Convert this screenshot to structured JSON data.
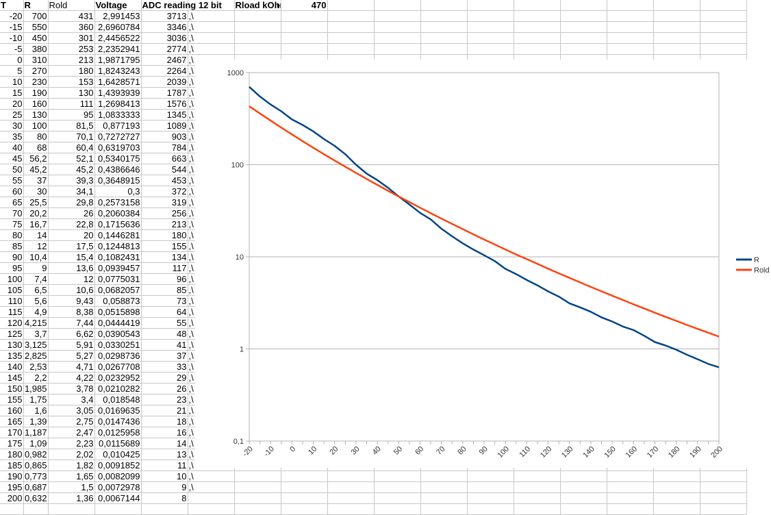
{
  "sheet": {
    "headers": [
      "T",
      "R",
      "Rold",
      "Voltage",
      "ADC reading 12 bit",
      "",
      "Rload kOhm",
      "470"
    ],
    "rows": [
      [
        "-20",
        "700",
        "431",
        "2,991453",
        "3713",
        ",\\"
      ],
      [
        "-15",
        "550",
        "360",
        "2,6960784",
        "3346",
        ",\\"
      ],
      [
        "-10",
        "450",
        "301",
        "2,4456522",
        "3036",
        ",\\"
      ],
      [
        "-5",
        "380",
        "253",
        "2,2352941",
        "2774",
        ",\\"
      ],
      [
        "0",
        "310",
        "213",
        "1,9871795",
        "2467",
        ",\\"
      ],
      [
        "5",
        "270",
        "180",
        "1,8243243",
        "2264",
        ",\\"
      ],
      [
        "10",
        "230",
        "153",
        "1,6428571",
        "2039",
        ",\\"
      ],
      [
        "15",
        "190",
        "130",
        "1,4393939",
        "1787",
        ",\\"
      ],
      [
        "20",
        "160",
        "111",
        "1,2698413",
        "1576",
        ",\\"
      ],
      [
        "25",
        "130",
        "95",
        "1,0833333",
        "1345",
        ",\\"
      ],
      [
        "30",
        "100",
        "81,5",
        "0,877193",
        "1089",
        ",\\"
      ],
      [
        "35",
        "80",
        "70,1",
        "0,7272727",
        "903",
        ",\\"
      ],
      [
        "40",
        "68",
        "60,4",
        "0,6319703",
        "784",
        ",\\"
      ],
      [
        "45",
        "56,2",
        "52,1",
        "0,5340175",
        "663",
        ",\\"
      ],
      [
        "50",
        "45,2",
        "45,2",
        "0,4386646",
        "544",
        ",\\"
      ],
      [
        "55",
        "37",
        "39,3",
        "0,3648915",
        "453",
        ",\\"
      ],
      [
        "60",
        "30",
        "34,1",
        "0,3",
        "372",
        ",\\"
      ],
      [
        "65",
        "25,5",
        "29,8",
        "0,2573158",
        "319",
        ",\\"
      ],
      [
        "70",
        "20,2",
        "26",
        "0,2060384",
        "256",
        ",\\"
      ],
      [
        "75",
        "16,7",
        "22,8",
        "0,1715636",
        "213",
        ",\\"
      ],
      [
        "80",
        "14",
        "20",
        "0,1446281",
        "180",
        ",\\"
      ],
      [
        "85",
        "12",
        "17,5",
        "0,1244813",
        "155",
        ",\\"
      ],
      [
        "90",
        "10,4",
        "15,4",
        "0,1082431",
        "134",
        ",\\"
      ],
      [
        "95",
        "9",
        "13,6",
        "0,0939457",
        "117",
        ",\\"
      ],
      [
        "100",
        "7,4",
        "12",
        "0,0775031",
        "96",
        ",\\"
      ],
      [
        "105",
        "6,5",
        "10,6",
        "0,0682057",
        "85",
        ",\\"
      ],
      [
        "110",
        "5,6",
        "9,43",
        "0,058873",
        "73",
        ",\\"
      ],
      [
        "115",
        "4,9",
        "8,38",
        "0,0515898",
        "64",
        ",\\"
      ],
      [
        "120",
        "4,215",
        "7,44",
        "0,0444419",
        "55",
        ",\\"
      ],
      [
        "125",
        "3,7",
        "6,62",
        "0,0390543",
        "48",
        ",\\"
      ],
      [
        "130",
        "3,125",
        "5,91",
        "0,0330251",
        "41",
        ",\\"
      ],
      [
        "135",
        "2,825",
        "5,27",
        "0,0298736",
        "37",
        ",\\"
      ],
      [
        "140",
        "2,53",
        "4,71",
        "0,0267708",
        "33",
        ",\\"
      ],
      [
        "145",
        "2,2",
        "4,22",
        "0,0232952",
        "29",
        ",\\"
      ],
      [
        "150",
        "1,985",
        "3,78",
        "0,0210282",
        "26",
        ",\\"
      ],
      [
        "155",
        "1,75",
        "3,4",
        "0,018548",
        "23",
        ",\\"
      ],
      [
        "160",
        "1,6",
        "3,05",
        "0,0169635",
        "21",
        ",\\"
      ],
      [
        "165",
        "1,39",
        "2,75",
        "0,0147436",
        "18",
        ",\\"
      ],
      [
        "170",
        "1,187",
        "2,47",
        "0,0125958",
        "16",
        ",\\"
      ],
      [
        "175",
        "1,09",
        "2,23",
        "0,0115689",
        "14",
        ",\\"
      ],
      [
        "180",
        "0,982",
        "2,02",
        "0,010425",
        "13",
        ",\\"
      ],
      [
        "185",
        "0,865",
        "1,82",
        "0,0091852",
        "11",
        ",\\"
      ],
      [
        "190",
        "0,773",
        "1,65",
        "0,0082099",
        "10",
        ",\\"
      ],
      [
        "195",
        "0,687",
        "1,5",
        "0,0072978",
        "9",
        ",\\"
      ],
      [
        "200",
        "0,632",
        "1,36",
        "0,0067144",
        "8",
        ""
      ]
    ]
  },
  "chart_data": {
    "type": "line",
    "y_scale": "log",
    "ylim": [
      0.1,
      1000
    ],
    "y_ticks": [
      "0,1",
      "1",
      "10",
      "100",
      "1000"
    ],
    "x": [
      -20,
      -15,
      -10,
      -5,
      0,
      5,
      10,
      15,
      20,
      25,
      30,
      35,
      40,
      45,
      50,
      55,
      60,
      65,
      70,
      75,
      80,
      85,
      90,
      95,
      100,
      105,
      110,
      115,
      120,
      125,
      130,
      135,
      140,
      145,
      150,
      155,
      160,
      165,
      170,
      175,
      180,
      185,
      190,
      195,
      200
    ],
    "x_tick_labels": [
      "-20",
      "-10",
      "0",
      "10",
      "20",
      "30",
      "40",
      "50",
      "60",
      "70",
      "80",
      "90",
      "100",
      "110",
      "120",
      "130",
      "140",
      "150",
      "160",
      "170",
      "180",
      "190",
      "200"
    ],
    "grid": "horizontal major",
    "legend": "right",
    "series": [
      {
        "name": "R",
        "color": "#004586",
        "values": [
          700,
          550,
          450,
          380,
          310,
          270,
          230,
          190,
          160,
          130,
          100,
          80,
          68,
          56.2,
          45.2,
          37,
          30,
          25.5,
          20.2,
          16.7,
          14,
          12,
          10.4,
          9,
          7.4,
          6.5,
          5.6,
          4.9,
          4.215,
          3.7,
          3.125,
          2.825,
          2.53,
          2.2,
          1.985,
          1.75,
          1.6,
          1.39,
          1.187,
          1.09,
          0.982,
          0.865,
          0.773,
          0.687,
          0.632
        ]
      },
      {
        "name": "Rold",
        "color": "#ff420e",
        "values": [
          431,
          360,
          301,
          253,
          213,
          180,
          153,
          130,
          111,
          95,
          81.5,
          70.1,
          60.4,
          52.1,
          45.2,
          39.3,
          34.1,
          29.8,
          26,
          22.8,
          20,
          17.5,
          15.4,
          13.6,
          12,
          10.6,
          9.43,
          8.38,
          7.44,
          6.62,
          5.91,
          5.27,
          4.71,
          4.22,
          3.78,
          3.4,
          3.05,
          2.75,
          2.47,
          2.23,
          2.02,
          1.82,
          1.65,
          1.5,
          1.36
        ]
      }
    ]
  }
}
